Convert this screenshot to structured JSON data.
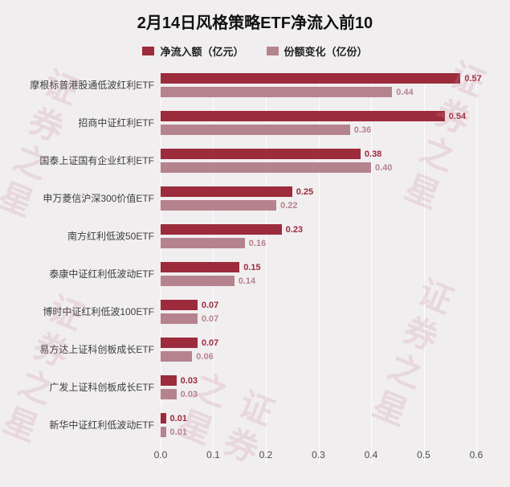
{
  "title": "2月14日风格策略ETF净流入前10",
  "watermark_text": "证券之星",
  "colors": {
    "background": "#f1eef0",
    "series1": "#9c2b3b",
    "series2": "#b5838d"
  },
  "chart_data": {
    "type": "bar",
    "orientation": "horizontal",
    "title": "2月14日风格策略ETF净流入前10",
    "legend_position": "top",
    "grid": true,
    "xlim": [
      0,
      0.6
    ],
    "xticks": [
      0,
      0.1,
      0.2,
      0.3,
      0.4,
      0.5,
      0.6
    ],
    "categories": [
      "摩根标普港股通低波红利ETF",
      "招商中证红利ETF",
      "国泰上证国有企业红利ETF",
      "申万菱信沪深300价值ETF",
      "南方红利低波50ETF",
      "泰康中证红利低波动ETF",
      "博时中证红利低波100ETF",
      "易方达上证科创板成长ETF",
      "广发上证科创板成长ETF",
      "新华中证红利低波动ETF"
    ],
    "series": [
      {
        "name": "净流入额（亿元）",
        "values": [
          0.57,
          0.54,
          0.38,
          0.25,
          0.23,
          0.15,
          0.07,
          0.07,
          0.03,
          0.01
        ]
      },
      {
        "name": "份额变化（亿份）",
        "values": [
          0.44,
          0.36,
          0.4,
          0.22,
          0.16,
          0.14,
          0.07,
          0.06,
          0.03,
          0.01
        ]
      }
    ]
  }
}
